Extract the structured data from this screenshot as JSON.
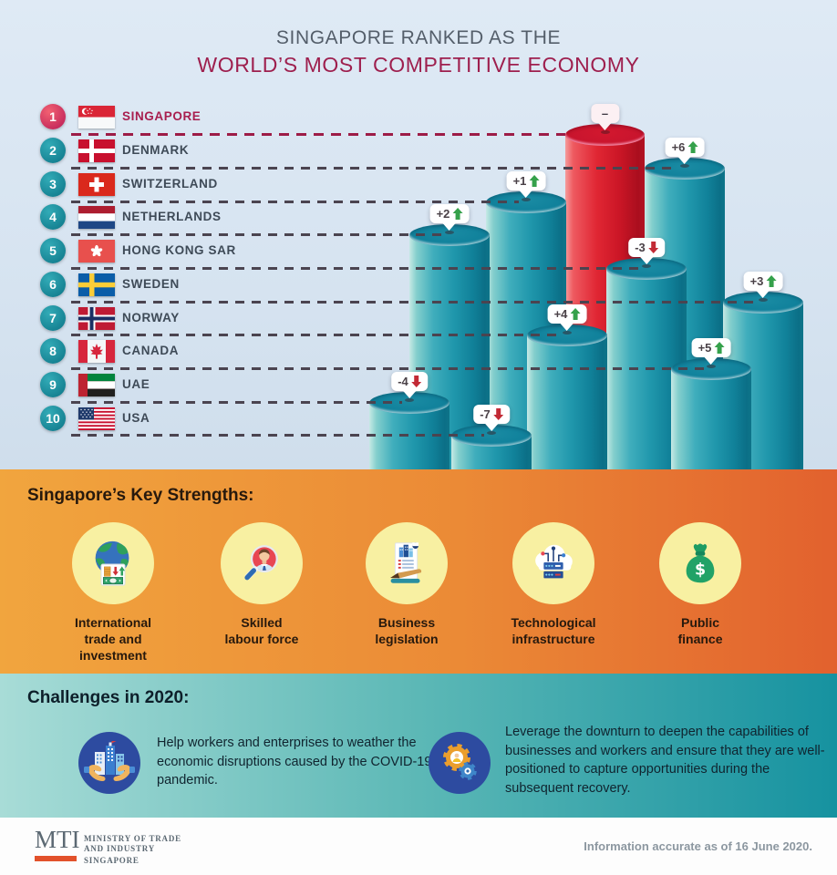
{
  "title": {
    "line1": "SINGAPORE RANKED AS THE",
    "line2": "WORLD’S MOST COMPETITIVE ECONOMY"
  },
  "rankings": [
    {
      "rank": "1",
      "country": "SINGAPORE",
      "flag": "singapore-flag-icon",
      "change": "–",
      "direction": "none"
    },
    {
      "rank": "2",
      "country": "DENMARK",
      "flag": "denmark-flag-icon",
      "change": "+6",
      "direction": "up"
    },
    {
      "rank": "3",
      "country": "SWITZERLAND",
      "flag": "switzerland-flag-icon",
      "change": "+1",
      "direction": "up"
    },
    {
      "rank": "4",
      "country": "NETHERLANDS",
      "flag": "netherlands-flag-icon",
      "change": "+2",
      "direction": "up"
    },
    {
      "rank": "5",
      "country": "HONG KONG SAR",
      "flag": "hong-kong-flag-icon",
      "change": "-3",
      "direction": "down"
    },
    {
      "rank": "6",
      "country": "SWEDEN",
      "flag": "sweden-flag-icon",
      "change": "+3",
      "direction": "up"
    },
    {
      "rank": "7",
      "country": "NORWAY",
      "flag": "norway-flag-icon",
      "change": "+4",
      "direction": "up"
    },
    {
      "rank": "8",
      "country": "CANADA",
      "flag": "canada-flag-icon",
      "change": "+5",
      "direction": "up"
    },
    {
      "rank": "9",
      "country": "UAE",
      "flag": "uae-flag-icon",
      "change": "-4",
      "direction": "down"
    },
    {
      "rank": "10",
      "country": "USA",
      "flag": "usa-flag-icon",
      "change": "-7",
      "direction": "down"
    }
  ],
  "strengths": {
    "heading": "Singapore’s Key Strengths:",
    "items": [
      {
        "label": "International\ntrade and\ninvestment",
        "icon": "globe-trade-icon"
      },
      {
        "label": "Skilled\nlabour force",
        "icon": "magnifier-person-icon"
      },
      {
        "label": "Business\nlegislation",
        "icon": "document-pen-icon"
      },
      {
        "label": "Technological\ninfrastructure",
        "icon": "cloud-servers-icon"
      },
      {
        "label": "Public\nfinance",
        "icon": "money-bag-icon"
      }
    ]
  },
  "challenges": {
    "heading": "Challenges in 2020:",
    "items": [
      {
        "icon": "buildings-hands-icon",
        "text": "Help workers and enterprises to weather the economic disruptions caused by the COVID-19 pandemic."
      },
      {
        "icon": "gears-icon",
        "text": "Leverage the downturn to deepen the capabilities of businesses and workers and ensure that they are well-positioned to capture opportunities during the subsequent recovery."
      }
    ]
  },
  "footer": {
    "logo_acronym": "MTI",
    "logo_line1": "MINISTRY OF TRADE",
    "logo_line2": "AND INDUSTRY",
    "logo_line3": "SINGAPORE",
    "note": "Information accurate as of 16 June 2020."
  },
  "colors": {
    "highlight_red": "#cb1626",
    "cylinder_teal": "#11829a",
    "crimson_text": "#9e1f4e",
    "orange_left": "#f1a53e",
    "orange_right": "#e2612e",
    "challenge_teal_left": "#a8dcd7",
    "challenge_teal_right": "#1692a0",
    "up_arrow_green": "#35a14b",
    "down_arrow_red": "#c22a35"
  },
  "chart_data": {
    "type": "bar",
    "title": "SINGAPORE RANKED AS THE WORLD’S MOST COMPETITIVE ECONOMY",
    "categories": [
      "SINGAPORE",
      "DENMARK",
      "SWITZERLAND",
      "NETHERLANDS",
      "HONG KONG SAR",
      "SWEDEN",
      "NORWAY",
      "CANADA",
      "UAE",
      "USA"
    ],
    "values": [
      1,
      2,
      3,
      4,
      5,
      6,
      7,
      8,
      9,
      10
    ],
    "value_meaning": "2020 competitiveness rank; 1 = most competitive; cylinder height inversely proportional to rank",
    "change_from_previous_year": [
      "–",
      "+6",
      "+1",
      "+2",
      "-3",
      "+3",
      "+4",
      "+5",
      "-4",
      "-7"
    ],
    "highlighted_category": "SINGAPORE",
    "legend": false,
    "grid": "dashed leader line per rank connecting list to cylinder top"
  }
}
